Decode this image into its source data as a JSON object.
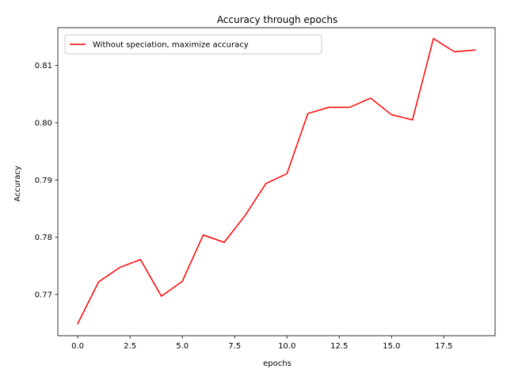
{
  "chart_data": {
    "type": "line",
    "title": "Accuracy  through epochs",
    "xlabel": "epochs",
    "ylabel": "Accuracy",
    "xlim": [
      -0.95,
      19.95
    ],
    "ylim": [
      0.7628,
      0.8166
    ],
    "xticks": [
      0.0,
      2.5,
      5.0,
      7.5,
      10.0,
      12.5,
      15.0,
      17.5
    ],
    "xtick_labels": [
      "0.0",
      "2.5",
      "5.0",
      "7.5",
      "10.0",
      "12.5",
      "15.0",
      "17.5"
    ],
    "yticks": [
      0.77,
      0.78,
      0.79,
      0.8,
      0.81
    ],
    "ytick_labels": [
      "0.77",
      "0.78",
      "0.79",
      "0.80",
      "0.81"
    ],
    "grid": false,
    "legend_position": "upper-left",
    "series": [
      {
        "name": "Without speciation, maximize accuracy",
        "color": "#ff0000",
        "x": [
          0,
          1,
          2,
          3,
          4,
          5,
          6,
          7,
          8,
          9,
          10,
          11,
          12,
          13,
          14,
          15,
          16,
          17,
          18,
          19
        ],
        "values": [
          0.7649,
          0.7722,
          0.7747,
          0.7761,
          0.7697,
          0.7723,
          0.7804,
          0.7791,
          0.7838,
          0.7894,
          0.7911,
          0.8016,
          0.8027,
          0.8027,
          0.8043,
          0.8014,
          0.8005,
          0.8147,
          0.8124,
          0.8127
        ]
      }
    ]
  }
}
